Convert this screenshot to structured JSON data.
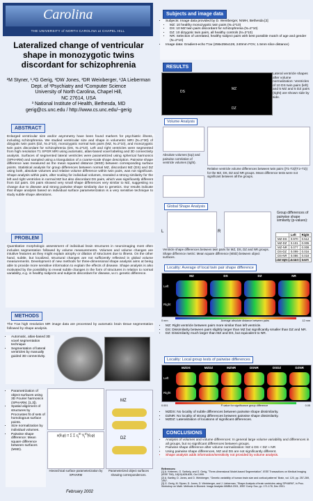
{
  "header": {
    "banner": "THE UNIVERSITY of NORTH CAROLINA at CHAPEL HILL",
    "logo": "Carolina"
  },
  "title": "Lateralized change of ventricular shape in monozygotic twins discordant for schizophrenia",
  "authors": [
    "²M Styner, ¹,²G Gerig, ³DW Jones, ³DR Weinberger, ¹JA Lieberman",
    "Dept. of ¹Psychiatry and ²Computer Science",
    "University of North Carolina, Chapel Hill,",
    "NC 27614, USA",
    "³ National Institute of Health, Bethesda, MD",
    "gerig@cs.unc.edu / http://www.cs.unc.edu/~gerig"
  ],
  "abstract": {
    "heading": "ABSTRACT",
    "text": "Enlarged ventricular size and/or asymmetry have been found markers for psychiatric illness, including schizophrenia. We studied ventricular size and shape in volumetric MRI (N=2*30) of dizygotic twin pairs (DZ, N=2*10), monozygotic normal twin pairs (MZ, N=2*10), and monozygotic twin pairs discordant for schizophrenia (DS, N=2*10). Left and right ventricles were segmented from high resolution T1 SPGR MRI using automatic, atlas-based voxel labeling and 3D connectivity analysis. Surfaces of segmented lateral ventricles were parametrized using spherical harmonics (SPHARM) and sampled using a triangulation of a coarse-scale shape description. Pairwise shape difference was measured as the mean squared distance (MSD) between corresponding surface points. Statistical analysis for group differences between normal MZ, discordant MZ (DS) and DZ using both, absolute volumes and relative volume difference within twin pairs, was not significant. Shape analysis within pairs, after scaling for individual volumes, revealed a strong similarity for the left and right ventricles in normal MZ but also discordant DS pairs, which was significantly different from DZ pairs. DS pairs showed very small shape differences very similar to MZ, suggesting no change due to disease and strong pairwise shape similarity due to genetics. Our results indicate that shape analysis based on individual surface parameterization is a very sensitive technique to study subtle shape alterations."
  },
  "problem": {
    "heading": "PROBLEM",
    "text": "Quantitative morphologic assessment of individual brain structures in neuroimaging most often includes segmentation followed by volume measurements. Volumes and volume changes are intuitive features as they might explain atrophy or dilation of structures due to illness. On the other hand, subtle, but localized, structural changes are not sufficiently reflected in global volume measurements. Development of new methods for three-dimensional shape analysis aims at being able to provide more sensitive information to explain the effects of disease. Shape analysis is also motivated by the possibility to reveal subtle changes in the form of structures in relation to normal variability, e.g. in healthy subjects and subjects discordant for disease, w.r.t. genetic difference."
  },
  "methods": {
    "heading": "METHODS",
    "text": "The T1w high resolution MR image data are processed by automatic brain tissue segmentation followed by shape analysis.",
    "bullets_a": [
      "Automatic, atlas-based 3D voxel segmentation technique",
      "Segmentation of lateral ventricles by manually guided 3D connectivity."
    ],
    "bullets_b": [
      "Parametrization of object surfaces using 3D Fourier harmonics (SPHARM, [1,3]).",
      "Spatial alignment of structures by Procrustes fit of sets of homologous surface points.",
      "Size normalization by individual volumes.",
      "Pairwise shape difference: Mean square difference between surfaces (MSD)."
    ],
    "caption_a": "Hierarchical surface parameterization by SPHARM",
    "caption_b": "Parameterized object surfaces showing correspondences.",
    "twin_labels": [
      "MZ",
      "DZ"
    ]
  },
  "date": "February 2002",
  "subjects": {
    "heading": "Subjects and image data",
    "bullets": [
      "Subjects: Image data provided by D. Weinberger, NIMH, Bethesda [2]",
      "MZ: 10 healthy monozygotic twin pairs (N=2*10)",
      "DS: 10 MZ twin pairs discordant for schizophrenia (N=2*10)",
      "DZ: 10 dizygotic twin pairs, all healthy controls (N=2*10)",
      "NR: Selection of unrelated, healthy subject pairs with best possible match of age and gender (N=2*10)",
      "Image data: Gradient-echo T1w (256x256x128, 240mm FOV, 1.5mm slice distance)"
    ]
  },
  "results": {
    "heading": "RESULTS",
    "shapes_note": "Lateral ventricle shapes after volume normalization: Ventricles of 10 DS twin pairs (left) and 5 MZ and 5 DZ pairs (right) are shown side by side.",
    "shape_labels": [
      "DS",
      "MZ",
      "DZ"
    ],
    "volume": {
      "heading": "Volume Analysis",
      "note_left": "Absolute volumes (top) and pairwise correlation of ventricle volumes (right).",
      "note_right": "Relative ventricle volume differences between twin pairs (|T1-T2|/(T1+T2)) for the MZ, DS, DZ and NR groups. Mean difference tests were not significant between all the groups."
    },
    "global": {
      "heading": "Global Shape Analysis",
      "side_labels": [
        "L",
        "R"
      ],
      "note": "Ventricle shape differences between twin pairs for MZ, DS, DZ and NR groups. Shape difference metric: Mean square difference (MSD) between object surfaces.",
      "table_title": "Group differences of pairwise shape similarity (p-values):",
      "table": {
        "header": [
          "",
          "Left",
          "Right"
        ],
        "rows": [
          [
            "MZ-DS",
            "0.970",
            "0.512"
          ],
          [
            "MZ-DZ",
            "0.101",
            "0.005"
          ],
          [
            "MZ-NR",
            "0.077",
            "0.008"
          ],
          [
            "DS-DZ",
            "0.099",
            "0.016"
          ],
          [
            "DS-NR",
            "0.086",
            "0.018"
          ],
          [
            "DZ-NR",
            "0.334",
            "0.676"
          ]
        ]
      },
      "table_note": "bold: significant at 5% level"
    },
    "locality1": {
      "heading": "Locality: Average of local twin pair shape difference",
      "columns": [
        "MZ",
        "DS",
        "DZ",
        "NR"
      ],
      "rows": [
        "Left",
        "Right"
      ],
      "scale": [
        "0 mm",
        "Average absolute distance between pairs",
        "12 mm"
      ],
      "bullets": [
        "MZ: Right ventricle between pairs more similar than left ventricle.",
        "DS: Dissimilarity between pairs slightly larger than MZ but significantly smaller than DZ and NR.",
        "DZ: Dissimilarity much larger than MZ and DS, but equivalent to NR."
      ]
    },
    "locality2": {
      "heading": "Locality: Local group tests of pairwise differences",
      "columns": [
        "MZDS",
        "MZDZ",
        "MZNR",
        "DSNR",
        "DSDZ",
        "DZNR"
      ],
      "rows": [
        "Left",
        "Right"
      ],
      "scale": [
        "0.001",
        "P-value for significance group difference",
        "0.05"
      ],
      "bullets": [
        "MZDS: No locality of subtle differences between pairwise shape dissimilarity.",
        "DZNR: No locality of strong differences between pairwise shape dissimilarity.",
        "MZDZ: Lateralization of locations of significant differences."
      ]
    }
  },
  "conclusions": {
    "heading": "CONCLUSIONS",
    "bullets": [
      "Analysis of volumes and volume differences: In general large volume variability and differences in all groups, but no significant differences between groups.",
      "Pairwise shape difference after volume normalization: MZ ≤ DS < DZ ≈ NR",
      "Using pairwise shape differences, MZ and DS are not significantly different.",
      "Shape analysis adds information/sensitivity not provided by volume analysis."
    ],
    "references_heading": "References:",
    "references": [
      "[1] A. Kelemen, G. Székely, and G. Gerig, \"Three-dimensional Model-based Segmentation\", IEEE Transactions on Medical Imaging (IEEE TMI), 18(10):828-839, Oct 1999.",
      "[2] A. Bartley, D. Jones, and D. Weinberger, \"Genetic variability of human brain size and cortical patterns\" Brain, vol. 120, pp. 257-269, 1997.",
      "[3] G. Gerig, M. Styner, D. Jones, D. Weinberger, and J. Lieberman, \"Shape Analysis of brain ventricles using SPHARM\", in Proc. Workshop on Math. Methods in Biomed. Image Analysis MMBIA 2001, IEEE Comp Soc. pp. 171-178, Dec 2001."
    ]
  }
}
